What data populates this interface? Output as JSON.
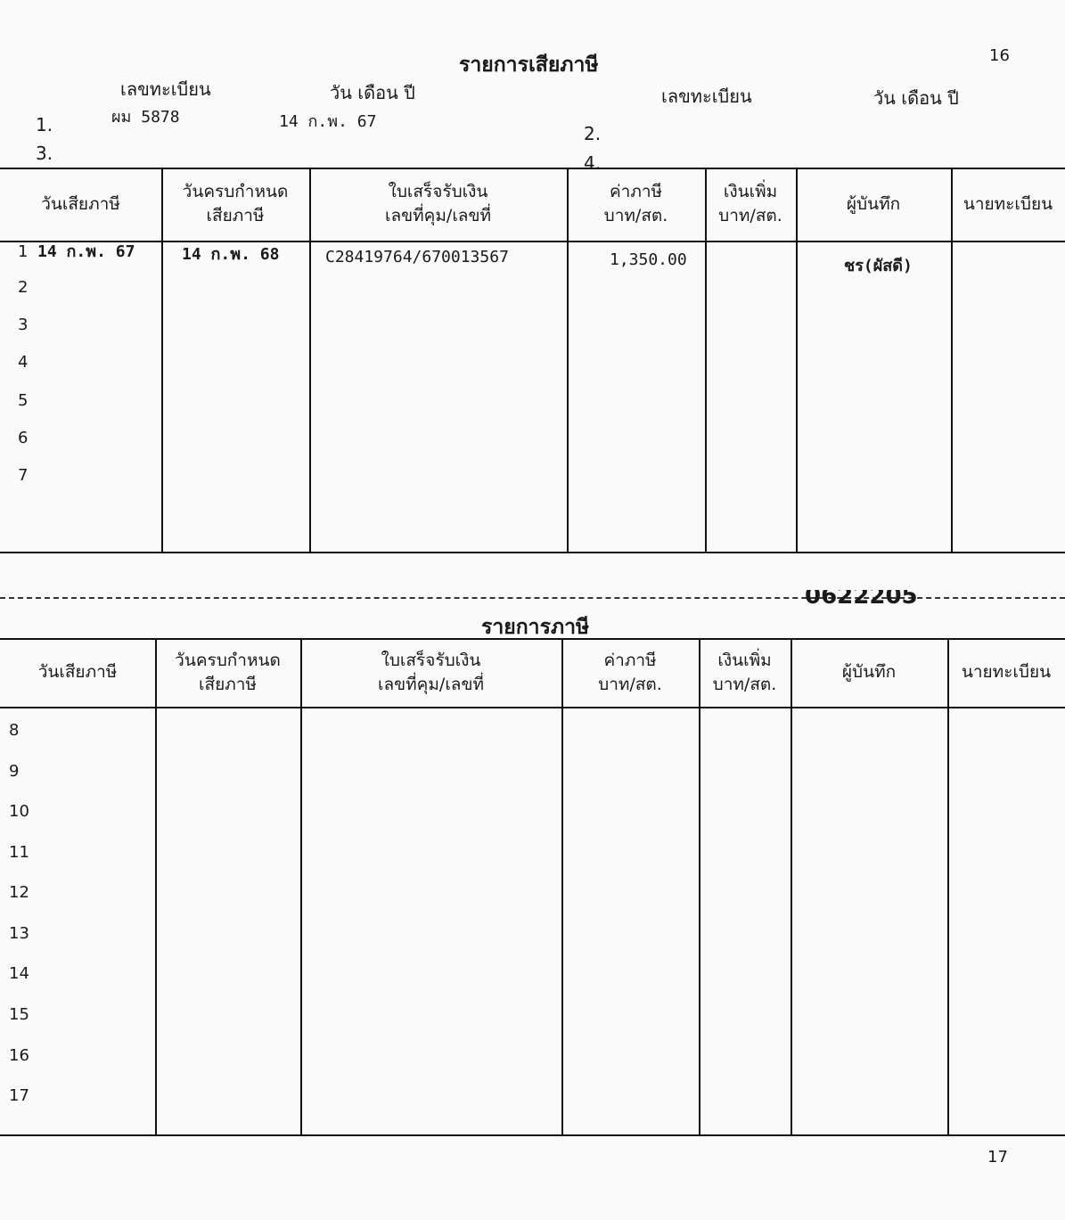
{
  "page_numbers": {
    "top": "16",
    "bottom": "17"
  },
  "section1": {
    "title": "รายการเสียภาษี",
    "reg_label_left": "เลขทะเบียน",
    "date_label_left": "วัน เดือน ปี",
    "reg_label_right": "เลขทะเบียน",
    "date_label_right": "วัน เดือน ปี",
    "entries": [
      {
        "num": "1.",
        "reg": "ผม 5878",
        "date": "14 ก.พ. 67"
      },
      {
        "num": "2.",
        "reg": "",
        "date": ""
      },
      {
        "num": "3.",
        "reg": "",
        "date": ""
      },
      {
        "num": "4.",
        "reg": "",
        "date": ""
      }
    ],
    "headers": [
      "วันเสียภาษี",
      "วันครบกำหนด\nเสียภาษี",
      "ใบเสร็จรับเงิน\nเลขที่คุม/เลขที่",
      "ค่าภาษี\nบาท/สต.",
      "เงินเพิ่ม\nบาท/สต.",
      "ผู้บันทึก",
      "นายทะเบียน"
    ],
    "row_numbers": [
      "1",
      "2",
      "3",
      "4",
      "5",
      "6",
      "7"
    ],
    "rows": [
      {
        "pay_date": "14 ก.พ. 67",
        "due_date": "14 ก.พ. 68",
        "receipt": "C28419764/670013567",
        "tax": "1,350.00",
        "surcharge": "",
        "recorder": "ชร(ผัสดี)",
        "registrar": ""
      }
    ]
  },
  "serial_number": "0622205",
  "section2": {
    "title": "รายการภาษี",
    "headers": [
      "วันเสียภาษี",
      "วันครบกำหนด\nเสียภาษี",
      "ใบเสร็จรับเงิน\nเลขที่คุม/เลขที่",
      "ค่าภาษี\nบาท/สต.",
      "เงินเพิ่ม\nบาท/สต.",
      "ผู้บันทึก",
      "นายทะเบียน"
    ],
    "row_numbers": [
      "8",
      "9",
      "10",
      "11",
      "12",
      "13",
      "14",
      "15",
      "16",
      "17"
    ]
  }
}
